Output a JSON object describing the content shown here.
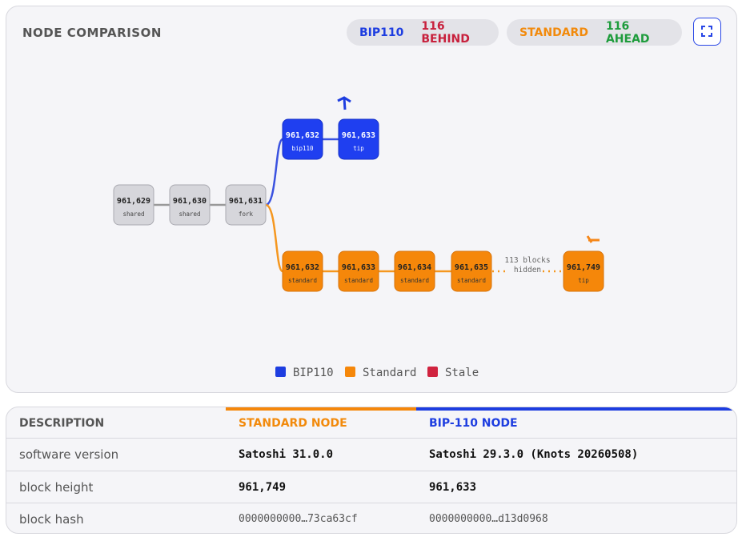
{
  "header": {
    "title": "NODE COMPARISON",
    "badges": [
      {
        "name": "BIP110",
        "status": "116 BEHIND"
      },
      {
        "name": "STANDARD",
        "status": "116 AHEAD"
      }
    ]
  },
  "diagram": {
    "blocks": [
      {
        "height": "961,629",
        "tag": "shared"
      },
      {
        "height": "961,630",
        "tag": "shared"
      },
      {
        "height": "961,631",
        "tag": "fork"
      },
      {
        "height": "961,632",
        "tag": "bip110"
      },
      {
        "height": "961,633",
        "tag": "tip"
      },
      {
        "height": "961,632",
        "tag": "standard"
      },
      {
        "height": "961,633",
        "tag": "standard"
      },
      {
        "height": "961,634",
        "tag": "standard"
      },
      {
        "height": "961,635",
        "tag": "standard"
      },
      {
        "height": "961,749",
        "tag": "tip"
      }
    ],
    "hidden_note": [
      "113 blocks",
      "hidden"
    ]
  },
  "legend": [
    "BIP110",
    "Standard",
    "Stale"
  ],
  "table": {
    "headers": [
      "DESCRIPTION",
      "STANDARD NODE",
      "BIP-110 NODE"
    ],
    "rows": [
      [
        "software version",
        "Satoshi 31.0.0",
        "Satoshi 29.3.0 (Knots 20260508)"
      ],
      [
        "block height",
        "961,749",
        "961,633"
      ],
      [
        "block hash",
        "0000000000…73ca63cf",
        "0000000000…d13d0968"
      ]
    ]
  }
}
